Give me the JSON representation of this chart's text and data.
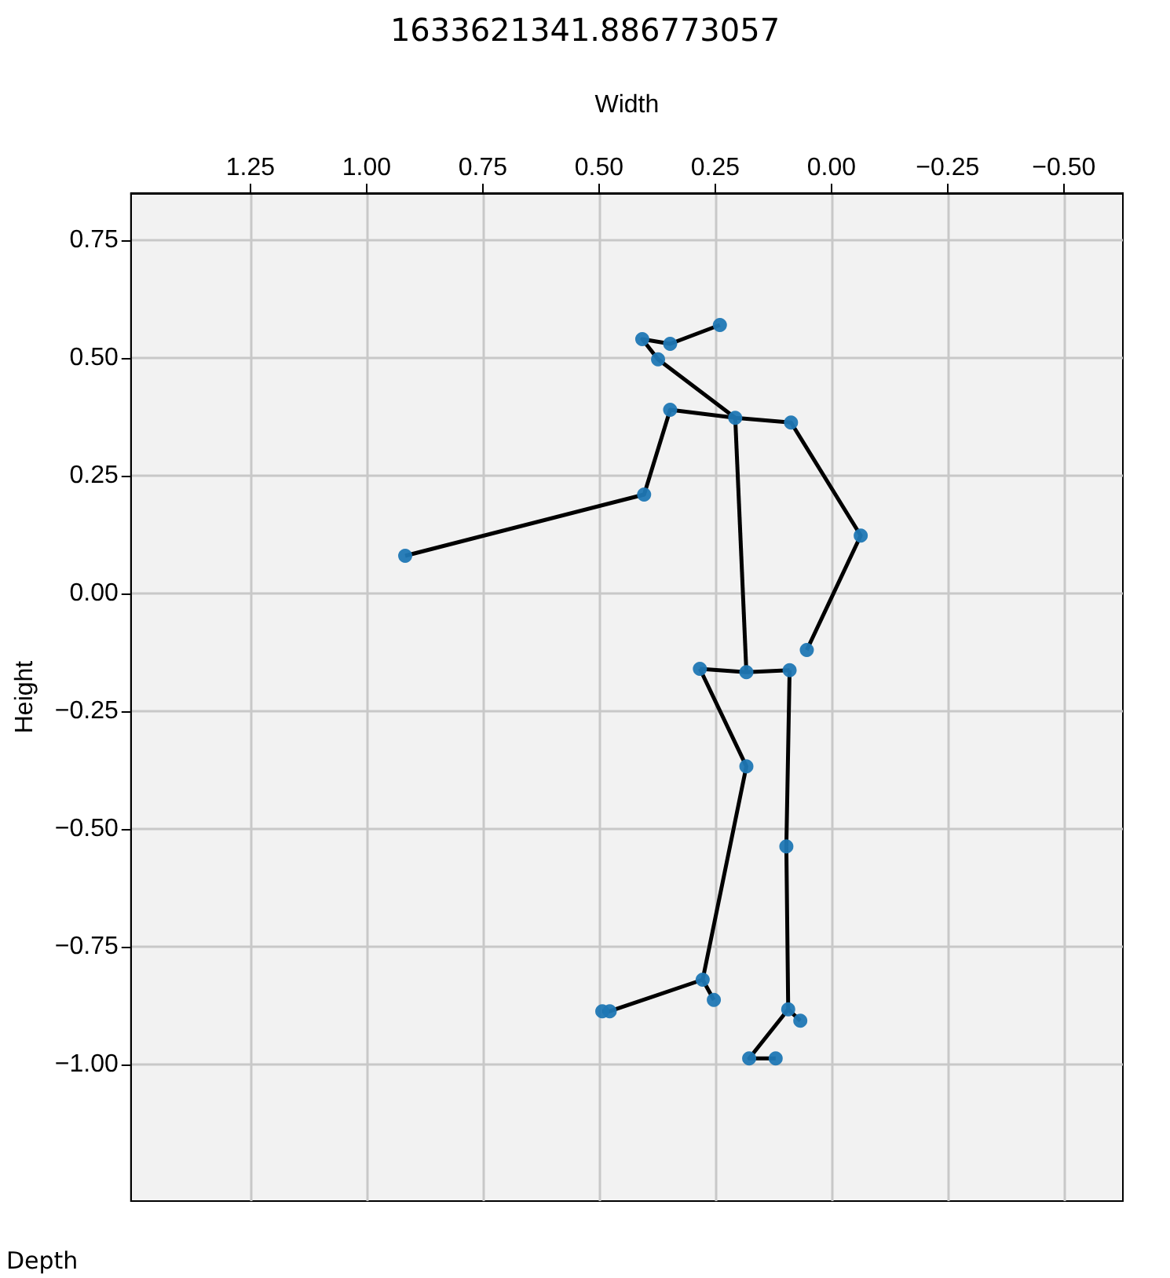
{
  "chart_data": {
    "type": "scatter",
    "title": "1633621341.886773057",
    "xlabel": "Width",
    "ylabel": "Height",
    "annotations": [
      "Depth"
    ],
    "xlim": [
      1.507,
      -0.627
    ],
    "ylim": [
      -1.29,
      0.85
    ],
    "xticks": [
      {
        "value": 1.25,
        "label": "1.25"
      },
      {
        "value": 1,
        "label": "1.00"
      },
      {
        "value": 0.75,
        "label": "0.75"
      },
      {
        "value": 0.5,
        "label": "0.50"
      },
      {
        "value": 0.25,
        "label": "0.25"
      },
      {
        "value": 0,
        "label": "0.00"
      },
      {
        "value": -0.25,
        "label": "−0.25"
      },
      {
        "value": -0.5,
        "label": "−0.50"
      }
    ],
    "yticks": [
      {
        "value": 0.75,
        "label": "0.75"
      },
      {
        "value": 0.5,
        "label": "0.50"
      },
      {
        "value": 0.25,
        "label": "0.25"
      },
      {
        "value": 0,
        "label": "0.00"
      },
      {
        "value": -0.25,
        "label": "−0.25"
      },
      {
        "value": -0.5,
        "label": "−0.50"
      },
      {
        "value": -0.75,
        "label": "−0.75"
      },
      {
        "value": -1,
        "label": "−1.00"
      }
    ],
    "grid": true,
    "series": [
      {
        "type": "line",
        "color": "#000000",
        "marker": "none",
        "x": [
          0.24,
          0.347,
          0.407,
          0.373,
          0.207
        ],
        "values": [
          0.57,
          0.53,
          0.54,
          0.497,
          0.373
        ]
      },
      {
        "type": "line",
        "color": "#000000",
        "marker": "none",
        "x": [
          0.917,
          0.403,
          0.347,
          0.207,
          0.087,
          -0.063,
          0.053
        ],
        "values": [
          0.08,
          0.21,
          0.39,
          0.373,
          0.363,
          0.123,
          -0.12
        ]
      },
      {
        "type": "line",
        "color": "#000000",
        "marker": "none",
        "x": [
          0.207,
          0.183
        ],
        "values": [
          0.373,
          -0.167
        ]
      },
      {
        "type": "line",
        "color": "#000000",
        "marker": "none",
        "x": [
          0.283,
          0.183,
          0.09
        ],
        "values": [
          -0.16,
          -0.167,
          -0.163
        ]
      },
      {
        "type": "line",
        "color": "#000000",
        "marker": "none",
        "x": [
          0.283,
          0.183,
          0.277,
          0.253
        ],
        "values": [
          -0.16,
          -0.367,
          -0.82,
          -0.863
        ]
      },
      {
        "type": "line",
        "color": "#000000",
        "marker": "none",
        "x": [
          0.277,
          0.477,
          0.493
        ],
        "values": [
          -0.82,
          -0.887,
          -0.887
        ]
      },
      {
        "type": "line",
        "color": "#000000",
        "marker": "none",
        "x": [
          0.09,
          0.097,
          0.093,
          0.067
        ],
        "values": [
          -0.163,
          -0.537,
          -0.883,
          -0.907
        ]
      },
      {
        "type": "line",
        "color": "#000000",
        "marker": "none",
        "x": [
          0.093,
          0.177,
          0.12
        ],
        "values": [
          -0.883,
          -0.987,
          -0.987
        ]
      },
      {
        "color": "#1f77b4",
        "marker": "circle",
        "x": [
          0.24,
          0.347,
          0.407,
          0.373,
          0.207,
          0.347,
          0.087,
          0.403,
          0.917,
          -0.063,
          0.053,
          0.283,
          0.183,
          0.09,
          0.183,
          0.277,
          0.253,
          0.477,
          0.493,
          0.097,
          0.093,
          0.067,
          0.177,
          0.12
        ],
        "values": [
          0.57,
          0.53,
          0.54,
          0.497,
          0.373,
          0.39,
          0.363,
          0.21,
          0.08,
          0.123,
          -0.12,
          -0.16,
          -0.167,
          -0.163,
          -0.367,
          -0.82,
          -0.863,
          -0.887,
          -0.887,
          -0.537,
          -0.883,
          -0.907,
          -0.987,
          -0.987
        ]
      }
    ]
  }
}
